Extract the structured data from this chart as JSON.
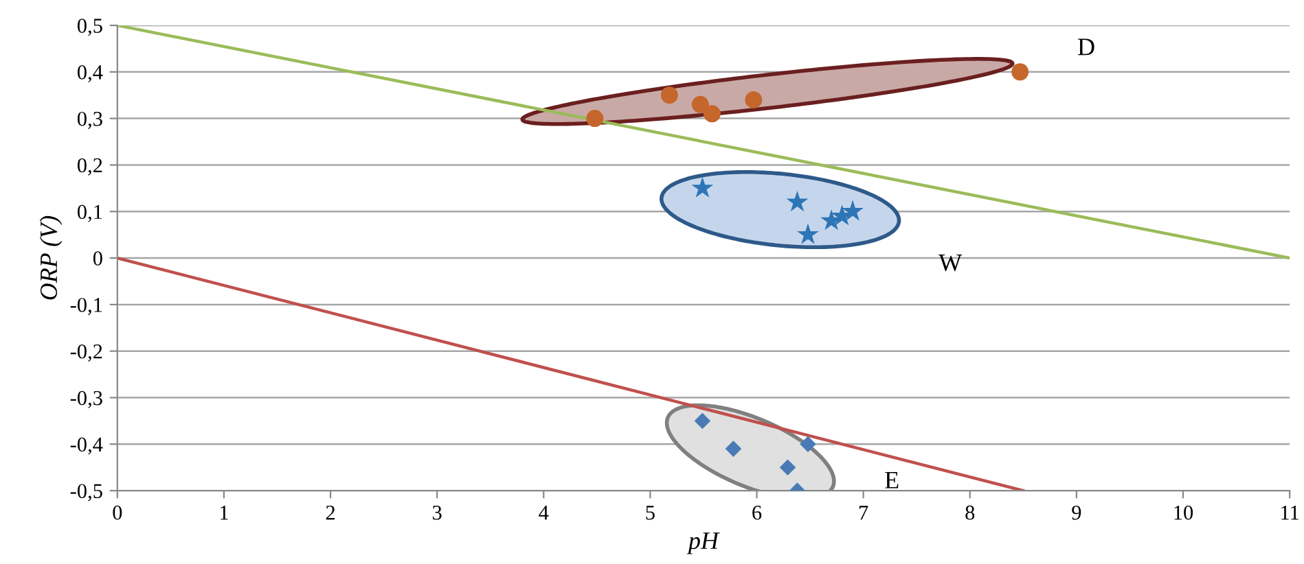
{
  "chart_data": {
    "type": "scatter",
    "xlabel": "pH",
    "ylabel": "ORP (V)",
    "xlim": [
      0,
      11
    ],
    "ylim": [
      -0.5,
      0.5
    ],
    "xticks": [
      0,
      1,
      2,
      3,
      4,
      5,
      6,
      7,
      8,
      9,
      10,
      11
    ],
    "yticks": [
      {
        "value": -0.5,
        "label": "-0,5"
      },
      {
        "value": -0.4,
        "label": "-0,4"
      },
      {
        "value": -0.3,
        "label": "-0,3"
      },
      {
        "value": -0.2,
        "label": "-0,2"
      },
      {
        "value": -0.1,
        "label": "-0,1"
      },
      0,
      {
        "value": 0.1,
        "label": "0,1"
      },
      {
        "value": 0.2,
        "label": "0,2"
      },
      {
        "value": 0.3,
        "label": "0,3"
      },
      {
        "value": 0.4,
        "label": "0,4"
      },
      {
        "value": 0.5,
        "label": "0,5"
      }
    ],
    "grid": "y",
    "legend": false,
    "series": [
      {
        "type": "line",
        "color": "#9bbb59",
        "marker": "none",
        "x": [
          0,
          11
        ],
        "values": [
          0.5,
          0
        ]
      },
      {
        "type": "line",
        "color": "#c0504d",
        "marker": "none",
        "x": [
          0,
          8.5
        ],
        "values": [
          0,
          -0.5
        ]
      },
      {
        "name": "D",
        "color": "#c5662c",
        "marker": "circle",
        "x": [
          4.48,
          5.18,
          5.47,
          5.58,
          5.97,
          8.47
        ],
        "values": [
          0.3,
          0.35,
          0.33,
          0.31,
          0.34,
          0.4
        ]
      },
      {
        "name": "W",
        "color": "#2e75b6",
        "marker": "star",
        "x": [
          5.49,
          6.38,
          6.48,
          6.7,
          6.8,
          6.9
        ],
        "values": [
          0.15,
          0.12,
          0.05,
          0.08,
          0.09,
          0.1
        ]
      },
      {
        "name": "E",
        "color": "#4a7ab5",
        "marker": "diamond",
        "x": [
          5.49,
          5.78,
          6.48,
          6.29,
          6.38
        ],
        "values": [
          -0.35,
          -0.41,
          -0.4,
          -0.45,
          -0.5
        ]
      }
    ]
  }
}
